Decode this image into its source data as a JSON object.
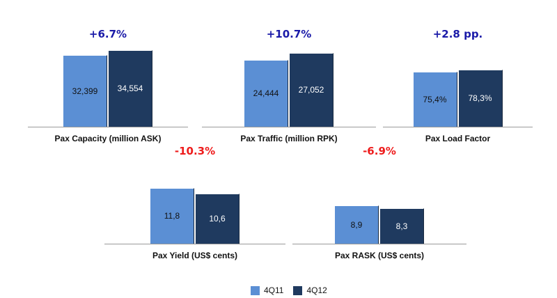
{
  "colors": {
    "series_4q11": "#5b8fd4",
    "series_4q12": "#1f3a5f",
    "positive": "#1a1aa8",
    "negative": "#ee1c1c"
  },
  "legend": [
    "4Q11",
    "4Q12"
  ],
  "chart_data": [
    {
      "type": "bar",
      "title": "Pax Capacity (million ASK)",
      "change": "+6.7%",
      "change_color": "positive",
      "series": [
        {
          "name": "4Q11",
          "value": 32399,
          "label": "32,399"
        },
        {
          "name": "4Q12",
          "value": 34554,
          "label": "34,554"
        }
      ]
    },
    {
      "type": "bar",
      "title": "Pax Traffic (million RPK)",
      "change": "+10.7%",
      "change_color": "positive",
      "series": [
        {
          "name": "4Q11",
          "value": 24444,
          "label": "24,444"
        },
        {
          "name": "4Q12",
          "value": 27052,
          "label": "27,052"
        }
      ]
    },
    {
      "type": "bar",
      "title": "Pax Load Factor",
      "change": "+2.8 pp.",
      "change_color": "positive",
      "series": [
        {
          "name": "4Q11",
          "value": 75.4,
          "label": "75,4%"
        },
        {
          "name": "4Q12",
          "value": 78.3,
          "label": "78,3%"
        }
      ]
    },
    {
      "type": "bar",
      "title": "Pax Yield (US$ cents)",
      "change": "-10.3%",
      "change_color": "negative",
      "series": [
        {
          "name": "4Q11",
          "value": 11.8,
          "label": "11,8"
        },
        {
          "name": "4Q12",
          "value": 10.6,
          "label": "10,6"
        }
      ]
    },
    {
      "type": "bar",
      "title": "Pax RASK (US$ cents)",
      "change": "-6.9%",
      "change_color": "negative",
      "series": [
        {
          "name": "4Q11",
          "value": 8.9,
          "label": "8,9"
        },
        {
          "name": "4Q12",
          "value": 8.3,
          "label": "8,3"
        }
      ]
    }
  ]
}
